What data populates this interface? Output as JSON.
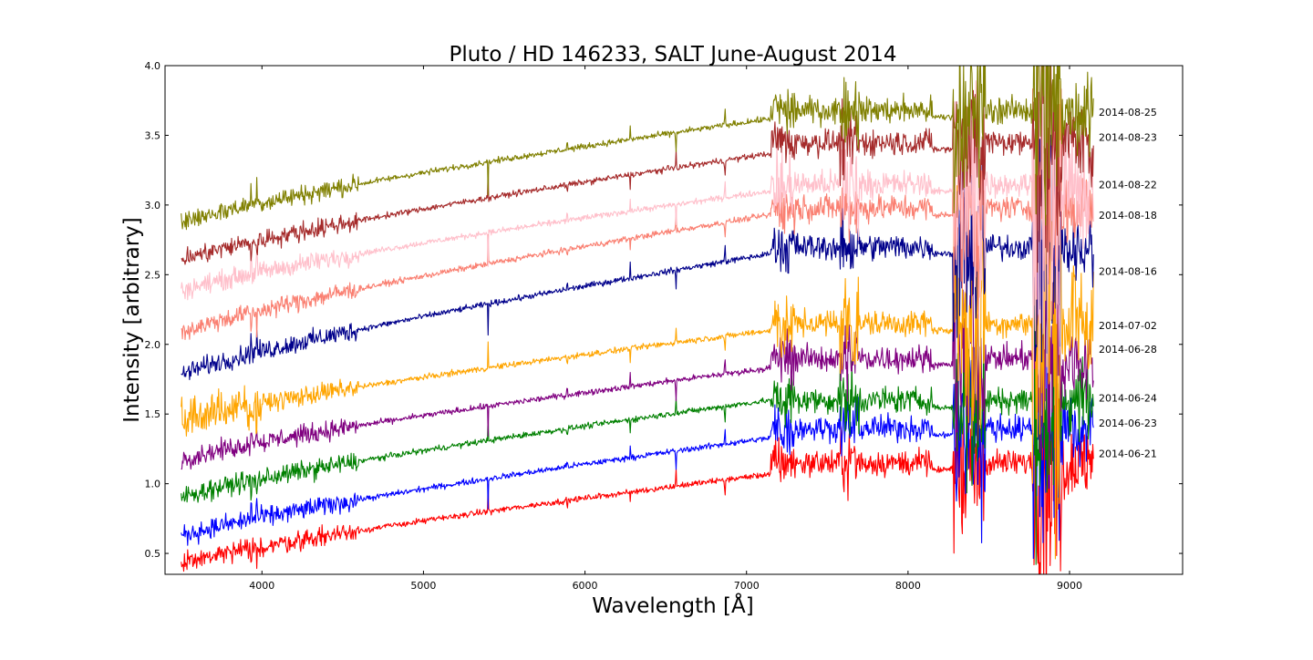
{
  "chart_data": {
    "type": "line",
    "title": "Pluto / HD 146233, SALT June-August 2014",
    "xlabel": "Wavelength [Å]",
    "ylabel": "Intensity [arbitrary]",
    "xlim": [
      3400,
      9700
    ],
    "ylim": [
      0.35,
      4.0
    ],
    "xticks": [
      4000,
      5000,
      6000,
      7000,
      8000,
      9000
    ],
    "yticks": [
      0.5,
      1.0,
      1.5,
      2.0,
      2.5,
      3.0,
      3.5,
      4.0
    ],
    "ytick_labels": [
      "0.5",
      "1.0",
      "1.5",
      "2.0",
      "2.5",
      "3.0",
      "3.5",
      "4.0"
    ],
    "grid": false,
    "legend": "labels at right end of each series",
    "x_start": 3500,
    "x_end": 9150,
    "series": [
      {
        "name": "2014-06-21",
        "color": "#ff0000",
        "start": 0.42,
        "at_7150": 1.07,
        "red_level": 1.15,
        "end_label_y": 1.17
      },
      {
        "name": "2014-06-23",
        "color": "#0000ff",
        "start": 0.62,
        "at_7150": 1.33,
        "red_level": 1.4,
        "end_label_y": 1.39
      },
      {
        "name": "2014-06-24",
        "color": "#008000",
        "start": 0.9,
        "at_7150": 1.6,
        "red_level": 1.6,
        "end_label_y": 1.57
      },
      {
        "name": "2014-06-28",
        "color": "#800080",
        "start": 1.17,
        "at_7150": 1.83,
        "red_level": 1.9,
        "end_label_y": 1.92
      },
      {
        "name": "2014-07-02",
        "color": "#ffa500",
        "start": 1.45,
        "at_7150": 2.1,
        "red_level": 2.15,
        "end_label_y": 2.09
      },
      {
        "name": "2014-08-16",
        "color": "#00008b",
        "start": 1.78,
        "at_7150": 2.65,
        "red_level": 2.7,
        "end_label_y": 2.48
      },
      {
        "name": "2014-08-18",
        "color": "#fa8072",
        "start": 2.08,
        "at_7150": 2.93,
        "red_level": 2.98,
        "end_label_y": 2.88
      },
      {
        "name": "2014-08-22",
        "color": "#ffc0cb",
        "start": 2.38,
        "at_7150": 3.1,
        "red_level": 3.15,
        "end_label_y": 3.1
      },
      {
        "name": "2014-08-23",
        "color": "#a52a2a",
        "start": 2.6,
        "at_7150": 3.37,
        "red_level": 3.45,
        "end_label_y": 3.44
      },
      {
        "name": "2014-08-25",
        "color": "#808000",
        "start": 2.87,
        "at_7150": 3.62,
        "red_level": 3.68,
        "end_label_y": 3.62
      }
    ]
  }
}
